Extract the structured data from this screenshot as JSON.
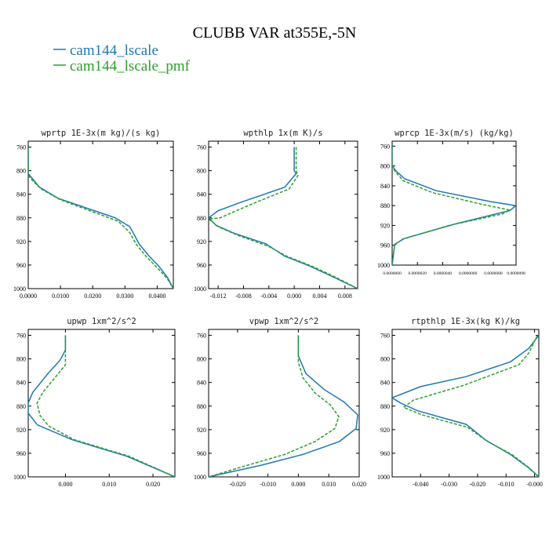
{
  "title": "CLUBB VAR at355E,-5N",
  "legend": [
    {
      "name": "cam144_lscale",
      "color": "#1f77b4"
    },
    {
      "name": "cam144_lscale_pmf",
      "color": "#2ca02c"
    }
  ],
  "chart_data": [
    {
      "type": "line",
      "title": "wprtp  1E-3x(m kg)/(s kg)",
      "xlim": [
        0,
        0.045
      ],
      "ylim": [
        1000,
        750
      ],
      "grid": false,
      "xticks": [
        "0.0000",
        "0.0100",
        "0.0200",
        "0.0300",
        "0.0400"
      ],
      "xtick_values": [
        0,
        0.01,
        0.02,
        0.03,
        0.04
      ],
      "yticks": [
        760,
        800,
        840,
        880,
        920,
        960,
        1000
      ],
      "series": [
        {
          "name": "cam144_lscale",
          "points": [
            [
              0.0,
              760
            ],
            [
              0.0,
              775
            ],
            [
              0.0,
              790
            ],
            [
              0.0,
              805
            ],
            [
              0.0015,
              815
            ],
            [
              0.0035,
              828
            ],
            [
              0.0093,
              847
            ],
            [
              0.027,
              880
            ],
            [
              0.0315,
              895
            ],
            [
              0.0345,
              925
            ],
            [
              0.0375,
              945
            ],
            [
              0.0405,
              962
            ],
            [
              0.0433,
              982
            ],
            [
              0.045,
              1000
            ]
          ]
        },
        {
          "name": "cam144_lscale_pmf",
          "points": [
            [
              0.0,
              760
            ],
            [
              0.0,
              775
            ],
            [
              0.0,
              790
            ],
            [
              0.0,
              808
            ],
            [
              0.0015,
              818
            ],
            [
              0.004,
              831
            ],
            [
              0.0098,
              849
            ],
            [
              0.028,
              886
            ],
            [
              0.0315,
              905
            ],
            [
              0.0335,
              925
            ],
            [
              0.0365,
              945
            ],
            [
              0.0395,
              962
            ],
            [
              0.043,
              982
            ],
            [
              0.045,
              1000
            ]
          ]
        }
      ]
    },
    {
      "type": "line",
      "title": "wpthlp  1x(m K)/s",
      "xlim": [
        -0.0135,
        0.01
      ],
      "ylim": [
        1000,
        750
      ],
      "grid": false,
      "xticks": [
        "-0.012",
        "-0.008",
        "-0.004",
        "0.000",
        "0.004",
        "0.008"
      ],
      "xtick_values": [
        -0.012,
        -0.008,
        -0.004,
        0.0,
        0.004,
        0.008
      ],
      "yticks": [
        760,
        800,
        840,
        880,
        920,
        960,
        1000
      ],
      "series": [
        {
          "name": "cam144_lscale",
          "points": [
            [
              0.0,
              760
            ],
            [
              0.0,
              800
            ],
            [
              0.0003,
              805
            ],
            [
              -0.0015,
              828
            ],
            [
              -0.0085,
              854
            ],
            [
              -0.012,
              868
            ],
            [
              -0.0135,
              880
            ],
            [
              -0.0123,
              893
            ],
            [
              -0.0095,
              906
            ],
            [
              -0.0045,
              924
            ],
            [
              -0.0015,
              945
            ],
            [
              0.0025,
              962
            ],
            [
              0.0065,
              982
            ],
            [
              0.01,
              1000
            ]
          ]
        },
        {
          "name": "cam144_lscale_pmf",
          "points": [
            [
              0.0003,
              760
            ],
            [
              0.0003,
              800
            ],
            [
              0.0006,
              808
            ],
            [
              -0.0008,
              831
            ],
            [
              -0.007,
              858
            ],
            [
              -0.0117,
              880
            ],
            [
              -0.0135,
              882
            ],
            [
              -0.0118,
              896
            ],
            [
              -0.0088,
              910
            ],
            [
              -0.0041,
              928
            ],
            [
              -0.0012,
              945
            ],
            [
              0.0028,
              962
            ],
            [
              0.0068,
              982
            ],
            [
              0.01,
              1000
            ]
          ]
        }
      ]
    },
    {
      "type": "line",
      "title": "wprcp  1E-3x(m/s) (kg/kg)",
      "xlim": [
        0,
        9.8e-06
      ],
      "ylim": [
        1000,
        750
      ],
      "grid": false,
      "xticks": [
        "0.0000000",
        "0.0000020",
        "0.0000040",
        "0.0000060",
        "0.0000080",
        "0.0000098"
      ],
      "xtick_values": [
        0,
        2e-06,
        4e-06,
        6e-06,
        8e-06,
        9.8e-06
      ],
      "yticks": [
        760,
        800,
        840,
        880,
        920,
        960,
        1000
      ],
      "series": [
        {
          "name": "cam144_lscale",
          "points": [
            [
              0.0,
              760
            ],
            [
              0.0,
              800
            ],
            [
              3e-07,
              810
            ],
            [
              1e-06,
              826
            ],
            [
              3.5e-06,
              850
            ],
            [
              7.8e-06,
              872
            ],
            [
              9.8e-06,
              880
            ],
            [
              9.3e-06,
              890
            ],
            [
              5e-06,
              917
            ],
            [
              1e-06,
              946
            ],
            [
              2e-07,
              958
            ],
            [
              0.0,
              1000
            ]
          ]
        },
        {
          "name": "cam144_lscale_pmf",
          "points": [
            [
              0.0,
              760
            ],
            [
              0.0,
              802
            ],
            [
              3e-07,
              813
            ],
            [
              9e-07,
              830
            ],
            [
              3.2e-06,
              854
            ],
            [
              7.2e-06,
              878
            ],
            [
              9.3e-06,
              889
            ],
            [
              8.7e-06,
              897
            ],
            [
              4.5e-06,
              920
            ],
            [
              8e-07,
              948
            ],
            [
              2e-07,
              960
            ],
            [
              0.0,
              1000
            ]
          ]
        }
      ]
    },
    {
      "type": "line",
      "title": "upwp  1xm^2/s^2",
      "xlim": [
        -0.0085,
        0.025
      ],
      "ylim": [
        1000,
        750
      ],
      "grid": false,
      "xticks": [
        "0.000",
        "0.010",
        "0.020"
      ],
      "xtick_values": [
        0,
        0.01,
        0.02
      ],
      "yticks": [
        760,
        800,
        840,
        880,
        920,
        960,
        1000
      ],
      "series": [
        {
          "name": "cam144_lscale",
          "points": [
            [
              0.0,
              760
            ],
            [
              0.0,
              785
            ],
            [
              -0.0012,
              802
            ],
            [
              -0.004,
              825
            ],
            [
              -0.0075,
              857
            ],
            [
              -0.0085,
              875
            ],
            [
              -0.0085,
              892
            ],
            [
              -0.0064,
              912
            ],
            [
              0.0015,
              937
            ],
            [
              0.014,
              965
            ],
            [
              0.025,
              1000
            ]
          ]
        },
        {
          "name": "cam144_lscale_pmf",
          "points": [
            [
              0.0,
              760
            ],
            [
              0.0,
              810
            ],
            [
              -0.0022,
              830
            ],
            [
              -0.0052,
              857
            ],
            [
              -0.0065,
              875
            ],
            [
              -0.0058,
              896
            ],
            [
              -0.0038,
              914
            ],
            [
              0.002,
              937
            ],
            [
              0.0145,
              965
            ],
            [
              0.025,
              1000
            ]
          ]
        }
      ]
    },
    {
      "type": "line",
      "title": "vpwp  1xm^2/s^2",
      "xlim": [
        -0.0295,
        0.02
      ],
      "ylim": [
        1000,
        750
      ],
      "grid": false,
      "xticks": [
        "-0.020",
        "-0.010",
        "0.000",
        "0.010",
        "0.020"
      ],
      "xtick_values": [
        -0.02,
        -0.01,
        0.0,
        0.01,
        0.02
      ],
      "yticks": [
        760,
        800,
        840,
        880,
        920,
        960,
        1000
      ],
      "series": [
        {
          "name": "cam144_lscale",
          "points": [
            [
              0.0,
              760
            ],
            [
              0.0,
              795
            ],
            [
              0.0025,
              825
            ],
            [
              0.0085,
              852
            ],
            [
              0.015,
              873
            ],
            [
              0.0195,
              895
            ],
            [
              0.019,
              918
            ],
            [
              0.0135,
              940
            ],
            [
              0.0015,
              962
            ],
            [
              -0.012,
              980
            ],
            [
              -0.0295,
              1000
            ]
          ]
        },
        {
          "name": "cam144_lscale_pmf",
          "points": [
            [
              0.0,
              760
            ],
            [
              0.0,
              805
            ],
            [
              0.0015,
              832
            ],
            [
              0.0055,
              858
            ],
            [
              0.0105,
              878
            ],
            [
              0.0133,
              898
            ],
            [
              0.012,
              918
            ],
            [
              0.0055,
              940
            ],
            [
              -0.0045,
              962
            ],
            [
              -0.0165,
              980
            ],
            [
              -0.0295,
              1000
            ]
          ]
        }
      ]
    },
    {
      "type": "line",
      "title": "rtpthlp  1E-3x(kg K)/kg",
      "xlim": [
        -0.05,
        0.0015
      ],
      "ylim": [
        1000,
        750
      ],
      "grid": false,
      "xticks": [
        "-0.040",
        "-0.030",
        "-0.020",
        "-0.010",
        "-0.000"
      ],
      "xtick_values": [
        -0.04,
        -0.03,
        -0.02,
        -0.01,
        0.0
      ],
      "yticks": [
        760,
        800,
        840,
        880,
        920,
        960,
        1000
      ],
      "series": [
        {
          "name": "cam144_lscale",
          "points": [
            [
              0.0015,
              760
            ],
            [
              -0.002,
              782
            ],
            [
              -0.0085,
              805
            ],
            [
              -0.024,
              830
            ],
            [
              -0.04,
              847
            ],
            [
              -0.05,
              866
            ],
            [
              -0.047,
              875
            ],
            [
              -0.041,
              888
            ],
            [
              -0.024,
              911
            ],
            [
              -0.017,
              938
            ],
            [
              -0.0085,
              962
            ],
            [
              -0.002,
              985
            ],
            [
              0.0015,
              1000
            ]
          ]
        },
        {
          "name": "cam144_lscale_pmf",
          "points": [
            [
              0.001,
              760
            ],
            [
              -0.002,
              790
            ],
            [
              -0.0055,
              810
            ],
            [
              -0.025,
              845
            ],
            [
              -0.0425,
              870
            ],
            [
              -0.046,
              882
            ],
            [
              -0.0395,
              895
            ],
            [
              -0.0235,
              916
            ],
            [
              -0.0165,
              940
            ],
            [
              -0.008,
              962
            ],
            [
              -0.0018,
              985
            ],
            [
              0.0015,
              1000
            ]
          ]
        }
      ]
    }
  ]
}
